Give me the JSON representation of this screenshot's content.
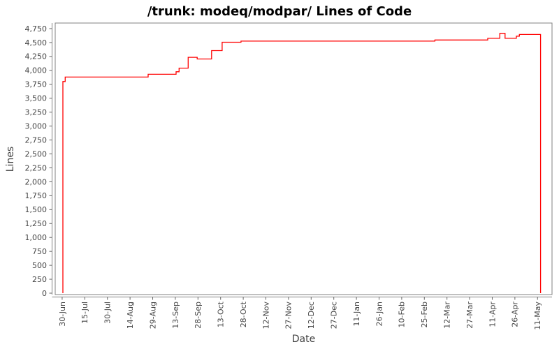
{
  "chart_data": {
    "type": "line",
    "subtype": "step-after",
    "title": "/trunk: modeq/modpar/ Lines of Code",
    "xlabel": "Date",
    "ylabel": "Lines",
    "grid": false,
    "legend": "none",
    "colors": {
      "series_line": "#ff0000",
      "plot_border": "#808080",
      "axis_line": "#808080",
      "tick_mark": "#666666",
      "tick_label": "#464646",
      "title_text": "#000000",
      "axis_title_text": "#3f3f3f",
      "background": "#ffffff"
    },
    "x_tick_labels": [
      "30-Jun",
      "15-Jul",
      "30-Jul",
      "14-Aug",
      "29-Aug",
      "13-Sep",
      "28-Sep",
      "13-Oct",
      "28-Oct",
      "12-Nov",
      "27-Nov",
      "12-Dec",
      "27-Dec",
      "11-Jan",
      "26-Jan",
      "10-Feb",
      "25-Feb",
      "12-Mar",
      "27-Mar",
      "11-Apr",
      "26-Apr",
      "11-May"
    ],
    "x_tick_days": [
      0,
      15,
      30,
      45,
      60,
      75,
      90,
      105,
      120,
      135,
      150,
      165,
      180,
      195,
      210,
      225,
      240,
      255,
      270,
      285,
      300,
      315
    ],
    "y_tick_values": [
      0,
      250,
      500,
      750,
      1000,
      1250,
      1500,
      1750,
      2000,
      2250,
      2500,
      2750,
      3000,
      3250,
      3500,
      3750,
      4000,
      4250,
      4500,
      4750
    ],
    "y_tick_labels": [
      "0",
      "250",
      "500",
      "750",
      "1,000",
      "1,250",
      "1,500",
      "1,750",
      "2,000",
      "2,250",
      "2,500",
      "2,750",
      "3,000",
      "3,250",
      "3,500",
      "3,750",
      "4,000",
      "4,250",
      "4,500",
      "4,750"
    ],
    "ylim": [
      -25,
      4850
    ],
    "xlim_days": [
      -4.6,
      324.6
    ],
    "series": [
      {
        "name": "lines-of-code",
        "points_day_value": [
          [
            0.5,
            0
          ],
          [
            0.5,
            3800
          ],
          [
            2,
            3880
          ],
          [
            57,
            3930
          ],
          [
            75.5,
            3975
          ],
          [
            77.5,
            4040
          ],
          [
            83.5,
            4235
          ],
          [
            89.5,
            4205
          ],
          [
            99,
            4355
          ],
          [
            106,
            4505
          ],
          [
            118.5,
            4525
          ],
          [
            247,
            4545
          ],
          [
            282,
            4575
          ],
          [
            290,
            4665
          ],
          [
            293.5,
            4575
          ],
          [
            301,
            4615
          ],
          [
            303,
            4645
          ],
          [
            317,
            0
          ]
        ]
      }
    ]
  }
}
